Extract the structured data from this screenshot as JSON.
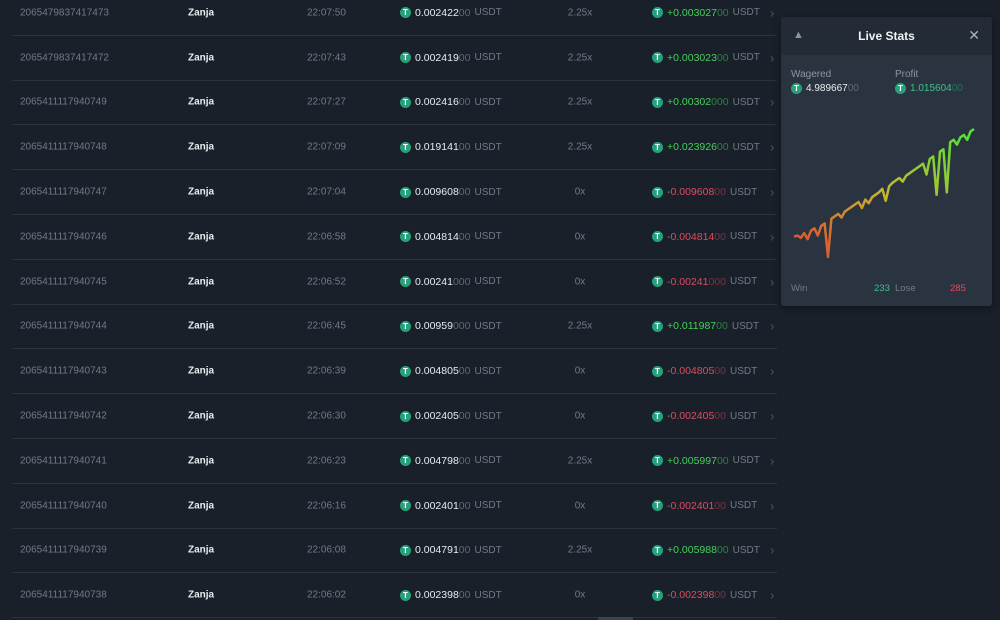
{
  "rows": [
    {
      "id": "2065479837417473",
      "user": "Zanja",
      "time": "22:07:50",
      "wager": [
        "0.002422",
        "00"
      ],
      "mult": "2.25x",
      "profit": [
        "+0.003027",
        "00"
      ],
      "result": "win",
      "currency": "USDT"
    },
    {
      "id": "2065479837417472",
      "user": "Zanja",
      "time": "22:07:43",
      "wager": [
        "0.002419",
        "00"
      ],
      "mult": "2.25x",
      "profit": [
        "+0.003023",
        "00"
      ],
      "result": "win",
      "currency": "USDT"
    },
    {
      "id": "2065411117940749",
      "user": "Zanja",
      "time": "22:07:27",
      "wager": [
        "0.002416",
        "00"
      ],
      "mult": "2.25x",
      "profit": [
        "+0.00302",
        "000"
      ],
      "result": "win",
      "currency": "USDT"
    },
    {
      "id": "2065411117940748",
      "user": "Zanja",
      "time": "22:07:09",
      "wager": [
        "0.019141",
        "00"
      ],
      "mult": "2.25x",
      "profit": [
        "+0.023926",
        "00"
      ],
      "result": "win",
      "currency": "USDT"
    },
    {
      "id": "2065411117940747",
      "user": "Zanja",
      "time": "22:07:04",
      "wager": [
        "0.009608",
        "00"
      ],
      "mult": "0x",
      "profit": [
        "-0.009608",
        "00"
      ],
      "result": "lose",
      "currency": "USDT"
    },
    {
      "id": "2065411117940746",
      "user": "Zanja",
      "time": "22:06:58",
      "wager": [
        "0.004814",
        "00"
      ],
      "mult": "0x",
      "profit": [
        "-0.004814",
        "00"
      ],
      "result": "lose",
      "currency": "USDT"
    },
    {
      "id": "2065411117940745",
      "user": "Zanja",
      "time": "22:06:52",
      "wager": [
        "0.00241",
        "000"
      ],
      "mult": "0x",
      "profit": [
        "-0.00241",
        "000"
      ],
      "result": "lose",
      "currency": "USDT"
    },
    {
      "id": "2065411117940744",
      "user": "Zanja",
      "time": "22:06:45",
      "wager": [
        "0.00959",
        "000"
      ],
      "mult": "2.25x",
      "profit": [
        "+0.011987",
        "00"
      ],
      "result": "win",
      "currency": "USDT"
    },
    {
      "id": "2065411117940743",
      "user": "Zanja",
      "time": "22:06:39",
      "wager": [
        "0.004805",
        "00"
      ],
      "mult": "0x",
      "profit": [
        "-0.004805",
        "00"
      ],
      "result": "lose",
      "currency": "USDT"
    },
    {
      "id": "2065411117940742",
      "user": "Zanja",
      "time": "22:06:30",
      "wager": [
        "0.002405",
        "00"
      ],
      "mult": "0x",
      "profit": [
        "-0.002405",
        "00"
      ],
      "result": "lose",
      "currency": "USDT"
    },
    {
      "id": "2065411117940741",
      "user": "Zanja",
      "time": "22:06:23",
      "wager": [
        "0.004798",
        "00"
      ],
      "mult": "2.25x",
      "profit": [
        "+0.005997",
        "00"
      ],
      "result": "win",
      "currency": "USDT"
    },
    {
      "id": "2065411117940740",
      "user": "Zanja",
      "time": "22:06:16",
      "wager": [
        "0.002401",
        "00"
      ],
      "mult": "0x",
      "profit": [
        "-0.002401",
        "00"
      ],
      "result": "lose",
      "currency": "USDT"
    },
    {
      "id": "2065411117940739",
      "user": "Zanja",
      "time": "22:06:08",
      "wager": [
        "0.004791",
        "00"
      ],
      "mult": "2.25x",
      "profit": [
        "+0.005988",
        "00"
      ],
      "result": "win",
      "currency": "USDT"
    },
    {
      "id": "2065411117940738",
      "user": "Zanja",
      "time": "22:06:02",
      "wager": [
        "0.002398",
        "00"
      ],
      "mult": "0x",
      "profit": [
        "-0.002398",
        "00"
      ],
      "result": "lose",
      "currency": "USDT"
    }
  ],
  "token_icon": "tether-icon",
  "live_stats": {
    "title": "Live Stats",
    "wagered_label": "Wagered",
    "wagered": [
      "4.989667",
      "00"
    ],
    "profit_label": "Profit",
    "profit": [
      "1.015604",
      "00"
    ],
    "win_label": "Win",
    "win_count": "233",
    "lose_label": "Lose",
    "lose_count": "285",
    "colors": {
      "win": "#3fc08a",
      "lose": "#e04a5f",
      "curve_low": "#e0452f",
      "curve_high": "#4be63a"
    }
  },
  "chart_data": {
    "type": "line",
    "values": [
      0.05,
      0.06,
      0.04,
      0.08,
      0.03,
      0.1,
      0.12,
      0.06,
      0.14,
      0.16,
      -0.12,
      0.2,
      0.22,
      0.24,
      0.21,
      0.26,
      0.28,
      0.3,
      0.32,
      0.34,
      0.29,
      0.36,
      0.33,
      0.38,
      0.4,
      0.42,
      0.45,
      0.35,
      0.47,
      0.5,
      0.52,
      0.54,
      0.51,
      0.56,
      0.58,
      0.6,
      0.62,
      0.64,
      0.66,
      0.57,
      0.7,
      0.72,
      0.4,
      0.76,
      0.78,
      0.42,
      0.84,
      0.86,
      0.82,
      0.88,
      0.9,
      0.86,
      0.93,
      0.95
    ],
    "grid": false
  }
}
